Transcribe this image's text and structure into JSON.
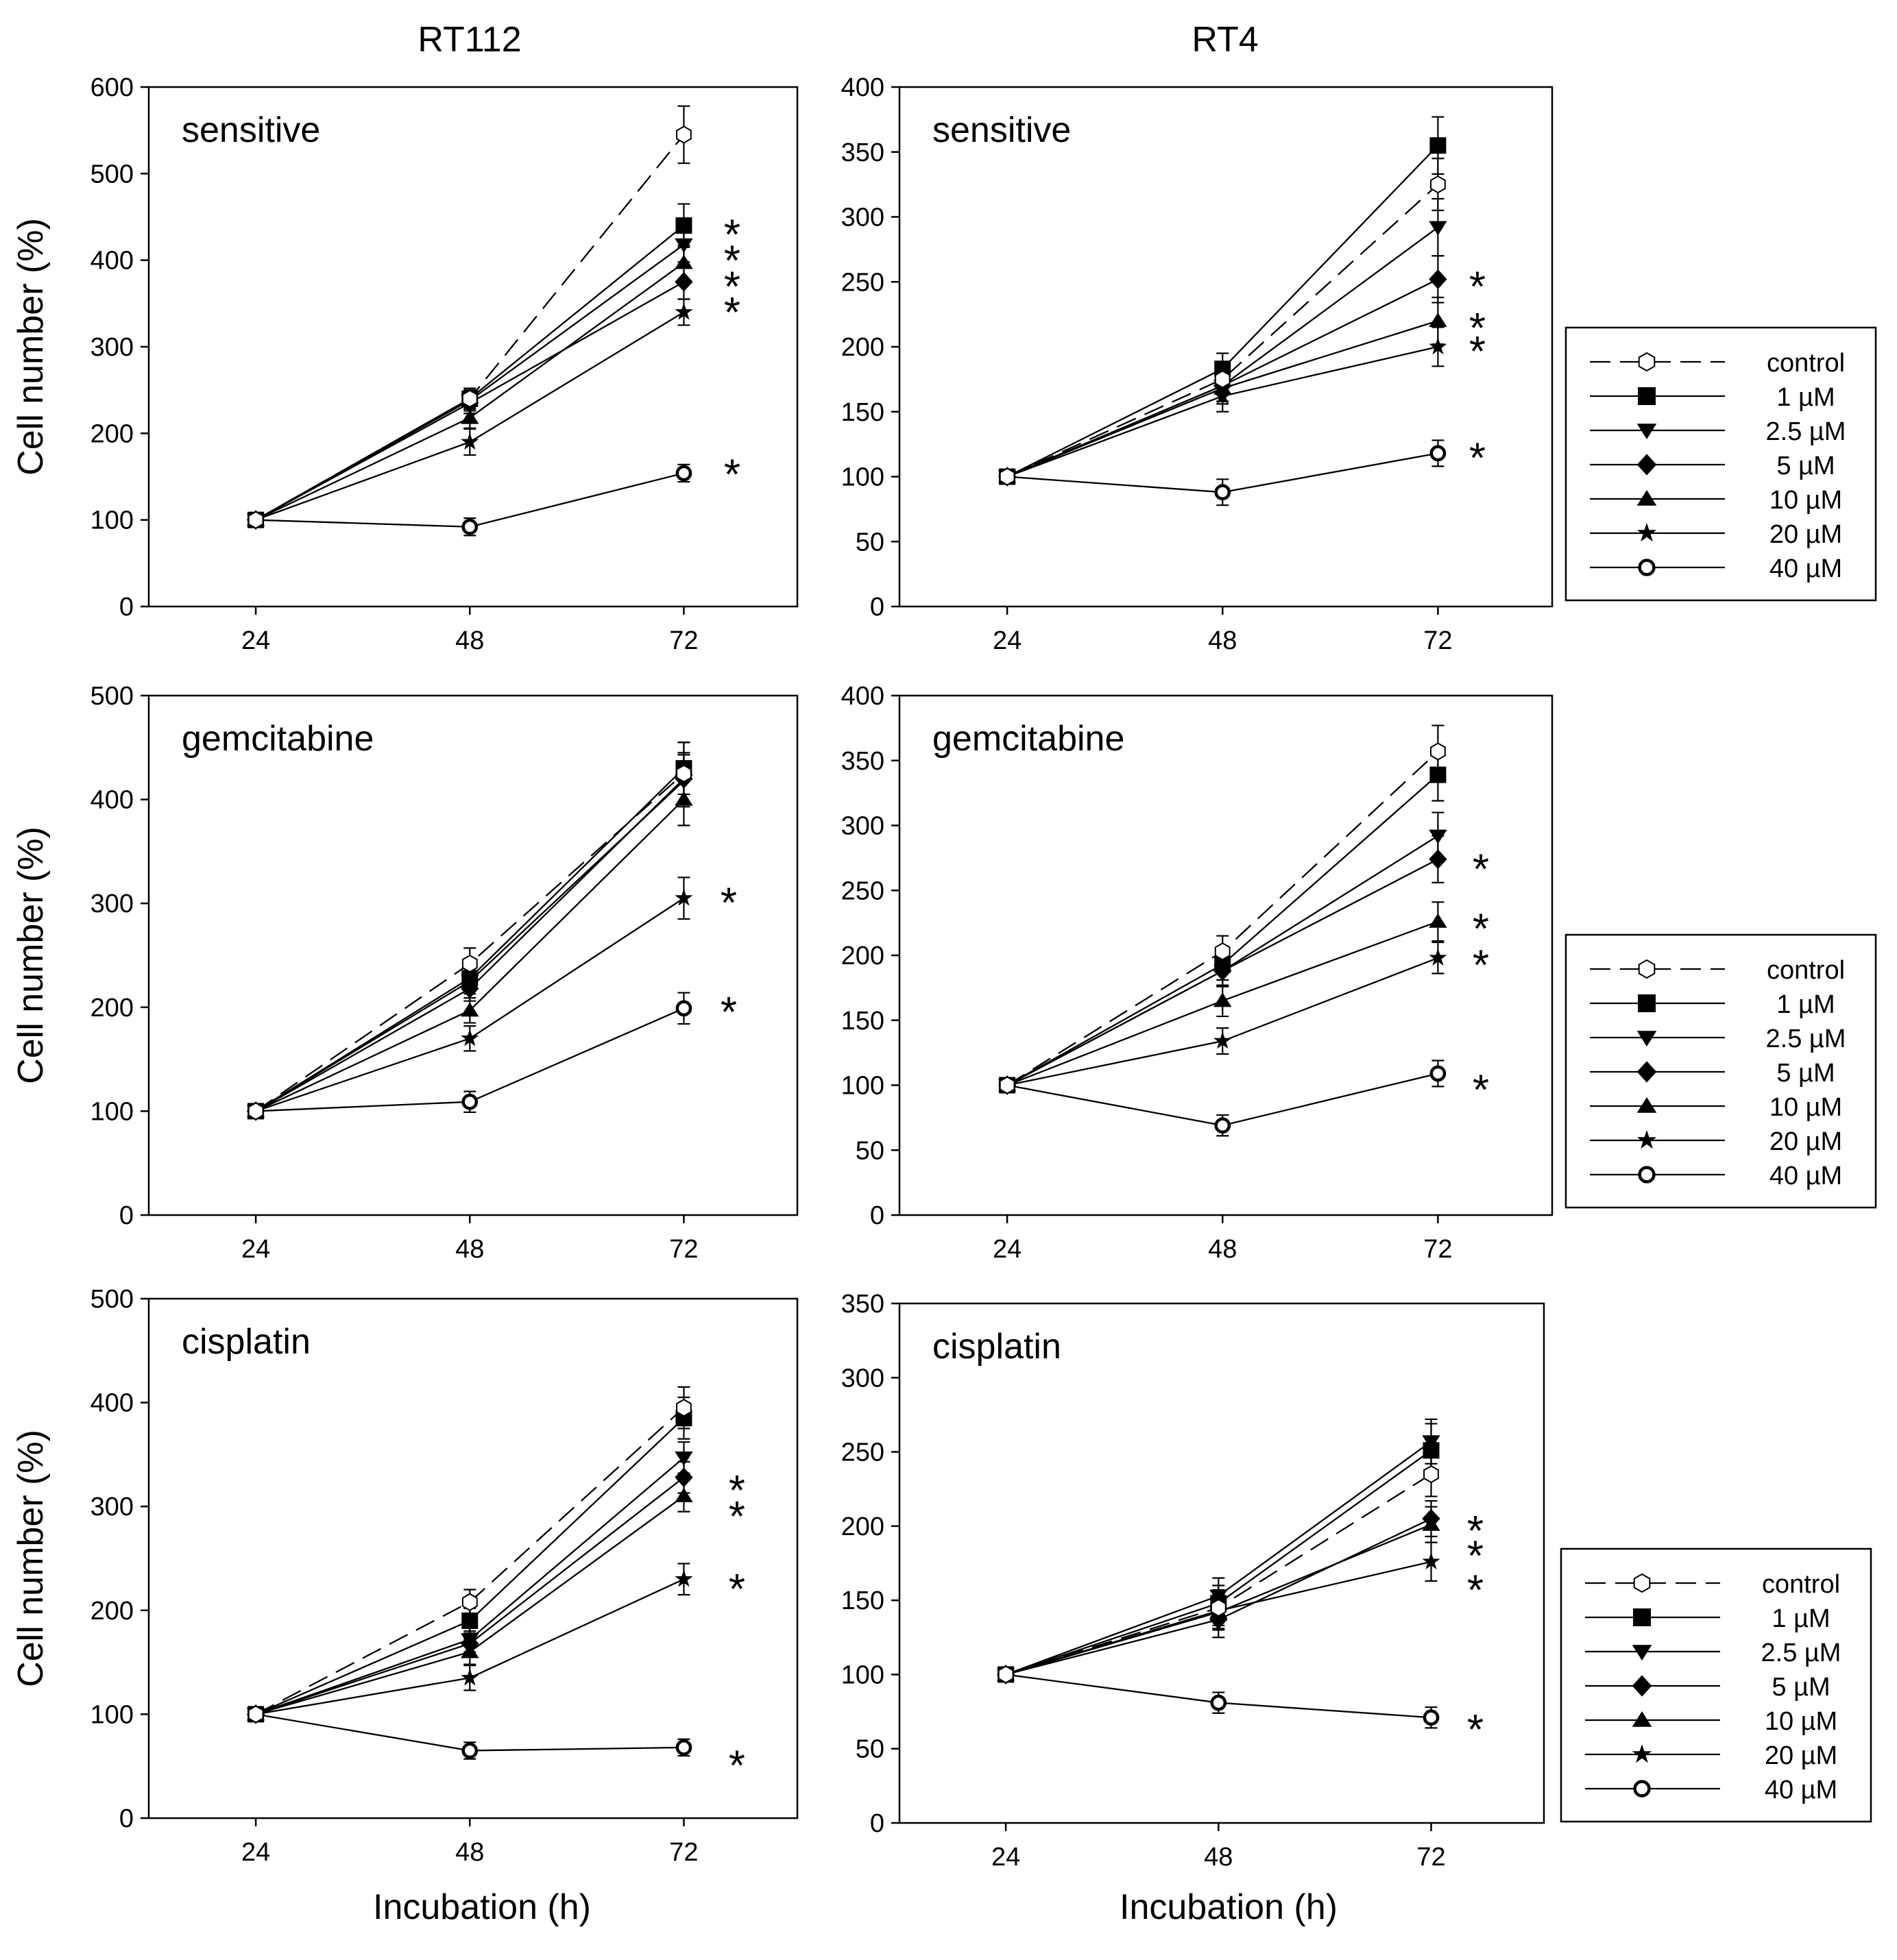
{
  "columns": [
    "RT112",
    "RT4"
  ],
  "common_xlabel": "Incubation (h)",
  "legend": {
    "entries": [
      "control",
      "1 µM",
      "2.5 µM",
      "5 µM",
      "10 µM",
      "20 µM",
      "40 µM"
    ]
  },
  "chart_data": [
    {
      "type": "line",
      "id": "rt112-sensitive",
      "panel_label": "sensitive",
      "cell_line": "RT112",
      "x": [
        24,
        48,
        72
      ],
      "x_tick_labels": [
        "24",
        "48",
        "72"
      ],
      "ylabel": "Cell number (%)",
      "xlabel": "",
      "ylim": [
        0,
        600
      ],
      "y_ticks": [
        0,
        100,
        200,
        300,
        400,
        500,
        600
      ],
      "series": [
        {
          "name": "control",
          "values": [
            100,
            240,
            545
          ],
          "errors": [
            0,
            12,
            33
          ]
        },
        {
          "name": "1 µM",
          "values": [
            100,
            240,
            440
          ],
          "errors": [
            0,
            12,
            25
          ]
        },
        {
          "name": "2.5 µM",
          "values": [
            100,
            238,
            418
          ],
          "errors": [
            0,
            12,
            20
          ]
        },
        {
          "name": "5 µM",
          "values": [
            100,
            235,
            375
          ],
          "errors": [
            0,
            12,
            20
          ]
        },
        {
          "name": "10 µM",
          "values": [
            100,
            218,
            397
          ],
          "errors": [
            0,
            12,
            20
          ]
        },
        {
          "name": "20 µM",
          "values": [
            100,
            190,
            340
          ],
          "errors": [
            0,
            15,
            15
          ]
        },
        {
          "name": "40 µM",
          "values": [
            100,
            92,
            154
          ],
          "errors": [
            0,
            10,
            10
          ]
        }
      ],
      "significance": [
        {
          "label": "*",
          "y": 435
        },
        {
          "label": "*",
          "y": 405
        },
        {
          "label": "*",
          "y": 375
        },
        {
          "label": "*",
          "y": 345
        },
        {
          "label": "*",
          "y": 158
        }
      ]
    },
    {
      "type": "line",
      "id": "rt4-sensitive",
      "panel_label": "sensitive",
      "cell_line": "RT4",
      "x": [
        24,
        48,
        72
      ],
      "x_tick_labels": [
        "24",
        "48",
        "72"
      ],
      "ylabel": "",
      "xlabel": "",
      "ylim": [
        0,
        400
      ],
      "y_ticks": [
        0,
        50,
        100,
        150,
        200,
        250,
        300,
        350,
        400
      ],
      "series": [
        {
          "name": "control",
          "values": [
            100,
            175,
            325
          ],
          "errors": [
            0,
            12,
            20
          ]
        },
        {
          "name": "1 µM",
          "values": [
            100,
            183,
            355
          ],
          "errors": [
            0,
            12,
            22
          ]
        },
        {
          "name": "2.5 µM",
          "values": [
            100,
            170,
            292
          ],
          "errors": [
            0,
            12,
            22
          ]
        },
        {
          "name": "5 µM",
          "values": [
            100,
            170,
            252
          ],
          "errors": [
            0,
            12,
            18
          ]
        },
        {
          "name": "10 µM",
          "values": [
            100,
            168,
            220
          ],
          "errors": [
            0,
            12,
            18
          ]
        },
        {
          "name": "20 µM",
          "values": [
            100,
            162,
            200
          ],
          "errors": [
            0,
            12,
            15
          ]
        },
        {
          "name": "40 µM",
          "values": [
            100,
            88,
            118
          ],
          "errors": [
            0,
            10,
            10
          ]
        }
      ],
      "significance": [
        {
          "label": "*",
          "y": 250
        },
        {
          "label": "*",
          "y": 218
        },
        {
          "label": "*",
          "y": 200
        },
        {
          "label": "*",
          "y": 118
        }
      ]
    },
    {
      "type": "line",
      "id": "rt112-gemcitabine",
      "panel_label": "gemcitabine",
      "cell_line": "RT112",
      "x": [
        24,
        48,
        72
      ],
      "x_tick_labels": [
        "24",
        "48",
        "72"
      ],
      "ylabel": "Cell number (%)",
      "xlabel": "",
      "ylim": [
        0,
        500
      ],
      "y_ticks": [
        0,
        100,
        200,
        300,
        400,
        500
      ],
      "series": [
        {
          "name": "control",
          "values": [
            100,
            242,
            425
          ],
          "errors": [
            0,
            15,
            30
          ]
        },
        {
          "name": "1 µM",
          "values": [
            100,
            228,
            430
          ],
          "errors": [
            0,
            12,
            25
          ]
        },
        {
          "name": "2.5 µM",
          "values": [
            100,
            225,
            418
          ],
          "errors": [
            0,
            12,
            25
          ]
        },
        {
          "name": "5 µM",
          "values": [
            100,
            218,
            420
          ],
          "errors": [
            0,
            12,
            25
          ]
        },
        {
          "name": "10 µM",
          "values": [
            100,
            197,
            400
          ],
          "errors": [
            0,
            12,
            25
          ]
        },
        {
          "name": "20 µM",
          "values": [
            100,
            170,
            305
          ],
          "errors": [
            0,
            12,
            20
          ]
        },
        {
          "name": "40 µM",
          "values": [
            100,
            109,
            199
          ],
          "errors": [
            0,
            10,
            15
          ]
        }
      ],
      "significance": [
        {
          "label": "*",
          "y": 305
        },
        {
          "label": "*",
          "y": 200
        }
      ]
    },
    {
      "type": "line",
      "id": "rt4-gemcitabine",
      "panel_label": "gemcitabine",
      "cell_line": "RT4",
      "x": [
        24,
        48,
        72
      ],
      "x_tick_labels": [
        "24",
        "48",
        "72"
      ],
      "ylabel": "",
      "xlabel": "",
      "ylim": [
        0,
        400
      ],
      "y_ticks": [
        0,
        50,
        100,
        150,
        200,
        250,
        300,
        350,
        400
      ],
      "series": [
        {
          "name": "control",
          "values": [
            100,
            203,
            357
          ],
          "errors": [
            0,
            12,
            20
          ]
        },
        {
          "name": "1 µM",
          "values": [
            100,
            193,
            339
          ],
          "errors": [
            0,
            12,
            20
          ]
        },
        {
          "name": "2.5 µM",
          "values": [
            100,
            188,
            292
          ],
          "errors": [
            0,
            12,
            18
          ]
        },
        {
          "name": "5 µM",
          "values": [
            100,
            188,
            274
          ],
          "errors": [
            0,
            12,
            18
          ]
        },
        {
          "name": "10 µM",
          "values": [
            100,
            165,
            226
          ],
          "errors": [
            0,
            12,
            15
          ]
        },
        {
          "name": "20 µM",
          "values": [
            100,
            134,
            198
          ],
          "errors": [
            0,
            10,
            12
          ]
        },
        {
          "name": "40 µM",
          "values": [
            100,
            69,
            109
          ],
          "errors": [
            0,
            8,
            10
          ]
        }
      ],
      "significance": [
        {
          "label": "*",
          "y": 270
        },
        {
          "label": "*",
          "y": 224
        },
        {
          "label": "*",
          "y": 196
        },
        {
          "label": "*",
          "y": 100
        }
      ]
    },
    {
      "type": "line",
      "id": "rt112-cisplatin",
      "panel_label": "cisplatin",
      "cell_line": "RT112",
      "x": [
        24,
        48,
        72
      ],
      "x_tick_labels": [
        "24",
        "48",
        "72"
      ],
      "ylabel": "Cell number (%)",
      "xlabel": "Incubation (h)",
      "ylim": [
        0,
        500
      ],
      "y_ticks": [
        0,
        100,
        200,
        300,
        400,
        500
      ],
      "series": [
        {
          "name": "control",
          "values": [
            100,
            208,
            395
          ],
          "errors": [
            0,
            12,
            20
          ]
        },
        {
          "name": "1 µM",
          "values": [
            100,
            190,
            385
          ],
          "errors": [
            0,
            12,
            20
          ]
        },
        {
          "name": "2.5 µM",
          "values": [
            100,
            172,
            347
          ],
          "errors": [
            0,
            12,
            15
          ]
        },
        {
          "name": "5 µM",
          "values": [
            100,
            168,
            328
          ],
          "errors": [
            0,
            12,
            15
          ]
        },
        {
          "name": "10 µM",
          "values": [
            100,
            160,
            310
          ],
          "errors": [
            0,
            12,
            15
          ]
        },
        {
          "name": "20 µM",
          "values": [
            100,
            135,
            230
          ],
          "errors": [
            0,
            12,
            15
          ]
        },
        {
          "name": "40 µM",
          "values": [
            100,
            65,
            68
          ],
          "errors": [
            0,
            8,
            8
          ]
        }
      ],
      "significance": [
        {
          "label": "*",
          "y": 320
        },
        {
          "label": "*",
          "y": 295
        },
        {
          "label": "*",
          "y": 225
        },
        {
          "label": "*",
          "y": 55
        }
      ]
    },
    {
      "type": "line",
      "id": "rt4-cisplatin",
      "panel_label": "cisplatin",
      "cell_line": "RT4",
      "x": [
        24,
        48,
        72
      ],
      "x_tick_labels": [
        "24",
        "48",
        "72"
      ],
      "ylabel": "",
      "xlabel": "Incubation (h)",
      "ylim": [
        0,
        350
      ],
      "y_ticks": [
        0,
        50,
        100,
        150,
        200,
        250,
        300,
        350
      ],
      "series": [
        {
          "name": "control",
          "values": [
            100,
            145,
            235
          ],
          "errors": [
            0,
            12,
            15
          ]
        },
        {
          "name": "1 µM",
          "values": [
            100,
            148,
            251
          ],
          "errors": [
            0,
            12,
            18
          ]
        },
        {
          "name": "2.5 µM",
          "values": [
            100,
            153,
            257
          ],
          "errors": [
            0,
            12,
            15
          ]
        },
        {
          "name": "5 µM",
          "values": [
            100,
            137,
            205
          ],
          "errors": [
            0,
            12,
            12
          ]
        },
        {
          "name": "10 µM",
          "values": [
            100,
            142,
            201
          ],
          "errors": [
            0,
            12,
            12
          ]
        },
        {
          "name": "20 µM",
          "values": [
            100,
            143,
            176
          ],
          "errors": [
            0,
            12,
            13
          ]
        },
        {
          "name": "40 µM",
          "values": [
            100,
            81,
            71
          ],
          "errors": [
            0,
            7,
            7
          ]
        }
      ],
      "significance": [
        {
          "label": "*",
          "y": 200
        },
        {
          "label": "*",
          "y": 183
        },
        {
          "label": "*",
          "y": 160
        },
        {
          "label": "*",
          "y": 66
        }
      ]
    }
  ]
}
